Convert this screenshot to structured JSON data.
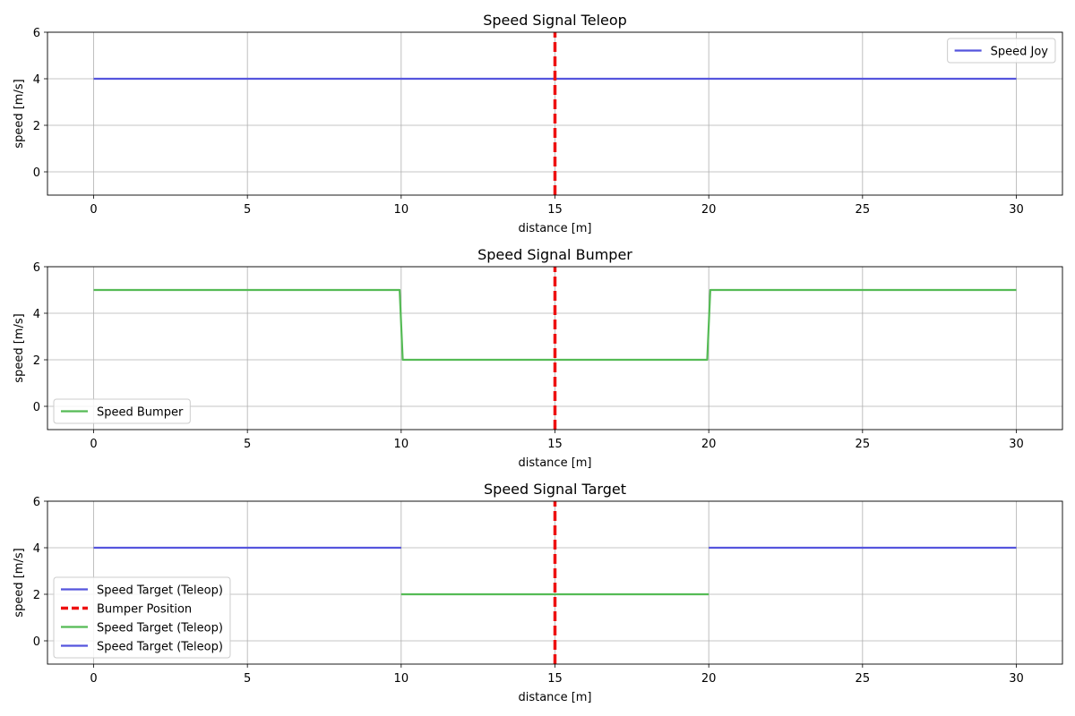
{
  "chart_data": [
    {
      "type": "line",
      "title": "Speed Signal Teleop",
      "xlabel": "distance [m]",
      "ylabel": "speed [m/s]",
      "xlim": [
        -1.5,
        31.5
      ],
      "ylim": [
        -1,
        6
      ],
      "xticks": [
        0,
        5,
        10,
        15,
        20,
        25,
        30
      ],
      "yticks": [
        0,
        2,
        4,
        6
      ],
      "grid": true,
      "legend_position": "upper right",
      "series": [
        {
          "name": "Speed Joy",
          "color": "#5555dd",
          "style": "solid",
          "x": [
            0,
            30
          ],
          "y": [
            4,
            4
          ],
          "in_legend": true
        },
        {
          "name": "",
          "color": "#ee1111",
          "style": "dashed",
          "x": [
            15,
            15
          ],
          "y": [
            -1,
            6
          ],
          "in_legend": false
        }
      ]
    },
    {
      "type": "line",
      "title": "Speed Signal Bumper",
      "xlabel": "distance [m]",
      "ylabel": "speed [m/s]",
      "xlim": [
        -1.5,
        31.5
      ],
      "ylim": [
        -1,
        6
      ],
      "xticks": [
        0,
        5,
        10,
        15,
        20,
        25,
        30
      ],
      "yticks": [
        0,
        2,
        4,
        6
      ],
      "grid": true,
      "legend_position": "lower left",
      "series": [
        {
          "name": "Speed Bumper",
          "color": "#55bb55",
          "style": "solid",
          "x": [
            0,
            9.95,
            10.05,
            19.95,
            20.05,
            30
          ],
          "y": [
            5,
            5,
            2,
            2,
            5,
            5
          ],
          "in_legend": true
        },
        {
          "name": "",
          "color": "#ee1111",
          "style": "dashed",
          "x": [
            15,
            15
          ],
          "y": [
            -1,
            6
          ],
          "in_legend": false
        }
      ]
    },
    {
      "type": "line",
      "title": "Speed Signal Target",
      "xlabel": "distance [m]",
      "ylabel": "speed [m/s]",
      "xlim": [
        -1.5,
        31.5
      ],
      "ylim": [
        -1,
        6
      ],
      "xticks": [
        0,
        5,
        10,
        15,
        20,
        25,
        30
      ],
      "yticks": [
        0,
        2,
        4,
        6
      ],
      "grid": true,
      "legend_position": "lower left",
      "series": [
        {
          "name": "Speed Target (Teleop)",
          "color": "#5555dd",
          "style": "solid",
          "x": [
            0,
            10
          ],
          "y": [
            4,
            4
          ],
          "in_legend": true
        },
        {
          "name": "Bumper Position",
          "color": "#ee1111",
          "style": "dashed",
          "x": [
            15,
            15
          ],
          "y": [
            -1,
            6
          ],
          "in_legend": true
        },
        {
          "name": "Speed Target (Teleop)",
          "color": "#55bb55",
          "style": "solid",
          "x": [
            10,
            20
          ],
          "y": [
            2,
            2
          ],
          "in_legend": true
        },
        {
          "name": "Speed Target (Teleop)",
          "color": "#5555dd",
          "style": "solid",
          "x": [
            20,
            30
          ],
          "y": [
            4,
            4
          ],
          "in_legend": true
        }
      ]
    }
  ]
}
